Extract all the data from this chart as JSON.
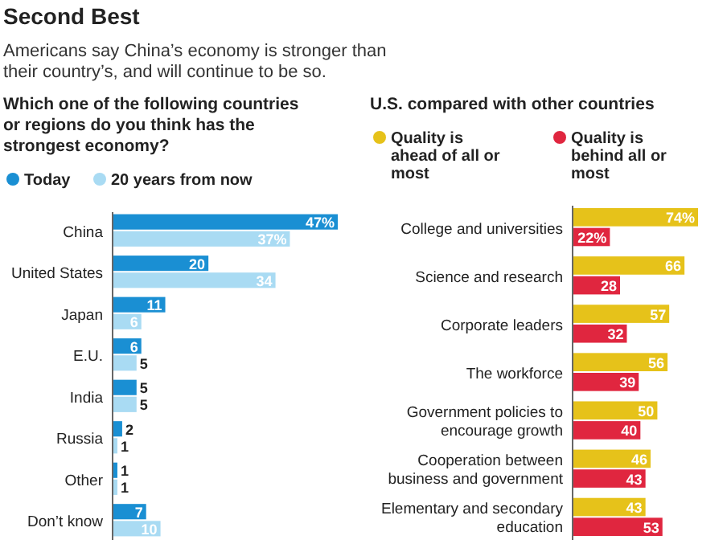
{
  "chart_data": [
    {
      "type": "other",
      "title": "Second Best",
      "subtitle": "Americans say China’s economy is stronger than their country’s, and will continue to be so."
    },
    {
      "type": "bar",
      "orientation": "horizontal",
      "title": "Which one of the following countries or regions do you think has the strongest economy?",
      "legend": "top left",
      "categories": [
        "China",
        "United States",
        "Japan",
        "E.U.",
        "India",
        "Russia",
        "Other",
        "Don’t know"
      ],
      "series": [
        {
          "name": "Today",
          "color": "#1a8fd3",
          "values": [
            47,
            20,
            11,
            6,
            5,
            2,
            1,
            7
          ],
          "value_labels": [
            "47%",
            "20",
            "11",
            "6",
            "5",
            "2",
            "1",
            "7"
          ]
        },
        {
          "name": "20 years from now",
          "color": "#a9dbf3",
          "values": [
            37,
            34,
            6,
            5,
            5,
            1,
            1,
            10
          ],
          "value_labels": [
            "37%",
            "34",
            "6",
            "5",
            "5",
            "1",
            "1",
            "10"
          ]
        }
      ]
    },
    {
      "type": "bar",
      "orientation": "horizontal",
      "title": "U.S. compared with other countries",
      "legend": "top left",
      "categories": [
        "College and universities",
        "Science and research",
        "Corporate leaders",
        "The workforce",
        "Government policies to encourage growth",
        "Cooperation between business and government",
        "Elementary and secondary education"
      ],
      "series": [
        {
          "name": "Quality is ahead of all or most",
          "color": "#e6c21a",
          "values": [
            74,
            66,
            57,
            56,
            50,
            46,
            43
          ],
          "value_labels": [
            "74%",
            "66",
            "57",
            "56",
            "50",
            "46",
            "43"
          ]
        },
        {
          "name": "Quality is behind all or most",
          "color": "#e0263f",
          "values": [
            22,
            28,
            32,
            39,
            40,
            43,
            53
          ],
          "value_labels": [
            "22%",
            "28",
            "32",
            "39",
            "40",
            "43",
            "53"
          ]
        }
      ]
    }
  ]
}
